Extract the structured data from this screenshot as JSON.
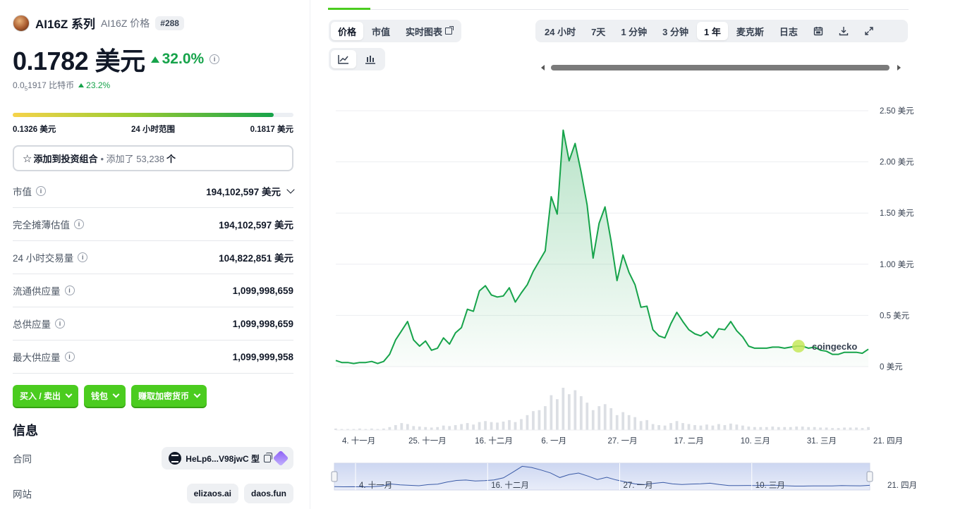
{
  "coin": {
    "name": "AI16Z 系列",
    "symbol_label": "AI16Z 价格",
    "rank": "#288",
    "price": "0.1782 美元",
    "change_24h": "32.0%",
    "btc_price_prefix": "0.0",
    "btc_price_sub": "5",
    "btc_price_suffix": "1917 比特币",
    "btc_change": "23.2%"
  },
  "range": {
    "low": "0.1326 美元",
    "label": "24 小时范围",
    "high": "0.1817 美元",
    "position": 0.93
  },
  "portfolio": {
    "label": "添加到投资组合",
    "added_text": "• 添加了 53,238",
    "unit": "个"
  },
  "stats": [
    {
      "label": "市值",
      "value": "194,102,597 美元",
      "dropdown": true
    },
    {
      "label": "完全摊薄估值",
      "value": "194,102,597 美元",
      "dropdown": false
    },
    {
      "label": "24 小时交易量",
      "value": "104,822,851 美元",
      "dropdown": false
    },
    {
      "label": "流通供应量",
      "value": "1,099,998,659",
      "dropdown": false
    },
    {
      "label": "总供应量",
      "value": "1,099,998,659",
      "dropdown": false
    },
    {
      "label": "最大供应量",
      "value": "1,099,999,958",
      "dropdown": false
    }
  ],
  "actions": [
    "买入 / 卖出",
    "钱包",
    "赚取加密货币"
  ],
  "info": {
    "title": "信息",
    "contract_label": "合同",
    "contract_value": "HeLp6...V98jwC 型",
    "website_label": "网站",
    "websites": [
      "elizaos.ai",
      "daos.fun"
    ]
  },
  "chart_tabs": {
    "left": [
      "价格",
      "市值",
      "实时图表"
    ],
    "right": [
      "24 小时",
      "7天",
      "1 分钟",
      "3 分钟",
      "1 年",
      "麦克斯",
      "日志"
    ],
    "active_left": "价格",
    "active_right": "1 年"
  },
  "colors": {
    "accent": "#4bcc1f",
    "up": "#16a34a",
    "line": "#16a34a",
    "navigator_line": "#3b5ba7"
  },
  "chart_data": {
    "type": "line",
    "title": "",
    "ylabel": "",
    "yticks": [
      "0 美元",
      "0.5 美元",
      "1.00 美元",
      "1.50 美元",
      "2.00 美元",
      "2.50 美元"
    ],
    "ytick_values": [
      0,
      0.5,
      1.0,
      1.5,
      2.0,
      2.5
    ],
    "ylim": [
      0,
      2.5
    ],
    "xticks": [
      "4. 十一月",
      "25. 十一月",
      "16. 十二月",
      "6. 一月",
      "27. 一月",
      "17. 二月",
      "10. 三月",
      "31. 三月",
      "21. 四月"
    ],
    "navigator_xticks": [
      "4. 十一月",
      "16. 十二月",
      "27. 一月",
      "10. 三月",
      "21. 四月"
    ],
    "watermark": "coingecko",
    "x_days": [
      0,
      2,
      4,
      6,
      8,
      10,
      12,
      14,
      16,
      18,
      20,
      22,
      24,
      26,
      28,
      30,
      32,
      34,
      36,
      38,
      40,
      42,
      44,
      46,
      48,
      50,
      52,
      54,
      56,
      58,
      60,
      62,
      64,
      66,
      68,
      70,
      72,
      74,
      76,
      78,
      80,
      82,
      84,
      86,
      88,
      90,
      92,
      94,
      96,
      98,
      100,
      102,
      104,
      106,
      108,
      110,
      112,
      114,
      116,
      118,
      120,
      122,
      124,
      126,
      128,
      130,
      132,
      134,
      136,
      138,
      140,
      142,
      144,
      146,
      148,
      150,
      152,
      154,
      156,
      158,
      160,
      162,
      164,
      166,
      168,
      170,
      172,
      174,
      176,
      178
    ],
    "prices": [
      0.06,
      0.04,
      0.04,
      0.03,
      0.04,
      0.04,
      0.05,
      0.03,
      0.05,
      0.12,
      0.26,
      0.35,
      0.44,
      0.26,
      0.2,
      0.25,
      0.16,
      0.18,
      0.28,
      0.22,
      0.33,
      0.38,
      0.56,
      0.54,
      0.74,
      0.79,
      0.7,
      0.68,
      0.69,
      0.77,
      0.63,
      0.72,
      0.8,
      0.93,
      1.03,
      1.13,
      1.66,
      1.49,
      2.31,
      2.01,
      2.18,
      1.9,
      1.58,
      1.06,
      1.4,
      1.56,
      1.23,
      0.84,
      1.09,
      0.92,
      0.8,
      0.58,
      0.59,
      0.36,
      0.3,
      0.28,
      0.42,
      0.53,
      0.44,
      0.36,
      0.32,
      0.3,
      0.34,
      0.28,
      0.37,
      0.36,
      0.44,
      0.35,
      0.29,
      0.2,
      0.18,
      0.18,
      0.18,
      0.19,
      0.19,
      0.18,
      0.19,
      0.2,
      0.2,
      0.18,
      0.19,
      0.16,
      0.15,
      0.12,
      0.12,
      0.14,
      0.14,
      0.14,
      0.13,
      0.17
    ],
    "volume": [
      3,
      2,
      2,
      2,
      3,
      2,
      3,
      2,
      3,
      6,
      10,
      14,
      12,
      8,
      7,
      6,
      5,
      6,
      9,
      8,
      10,
      12,
      14,
      11,
      16,
      18,
      16,
      15,
      17,
      20,
      16,
      22,
      30,
      38,
      40,
      48,
      70,
      62,
      85,
      72,
      80,
      68,
      55,
      40,
      48,
      52,
      44,
      30,
      36,
      30,
      26,
      18,
      20,
      12,
      10,
      9,
      14,
      18,
      14,
      12,
      10,
      9,
      11,
      9,
      12,
      10,
      13,
      11,
      9,
      7,
      6,
      6,
      6,
      7,
      6,
      6,
      6,
      7,
      7,
      6,
      6,
      5,
      5,
      4,
      4,
      5,
      5,
      5,
      4,
      6
    ],
    "navigator_prices": [
      0.06,
      0.04,
      0.05,
      0.03,
      0.05,
      0.12,
      0.35,
      0.26,
      0.2,
      0.16,
      0.28,
      0.33,
      0.56,
      0.74,
      0.79,
      0.69,
      0.72,
      0.8,
      1.03,
      1.66,
      2.31,
      2.18,
      1.9,
      1.58,
      1.06,
      1.4,
      1.56,
      1.23,
      0.84,
      1.09,
      0.8,
      0.58,
      0.36,
      0.28,
      0.42,
      0.53,
      0.36,
      0.3,
      0.34,
      0.37,
      0.44,
      0.29,
      0.18,
      0.18,
      0.19,
      0.18,
      0.2,
      0.2,
      0.16,
      0.12,
      0.12,
      0.14,
      0.14,
      0.13,
      0.17,
      0.16,
      0.15,
      0.2
    ]
  }
}
